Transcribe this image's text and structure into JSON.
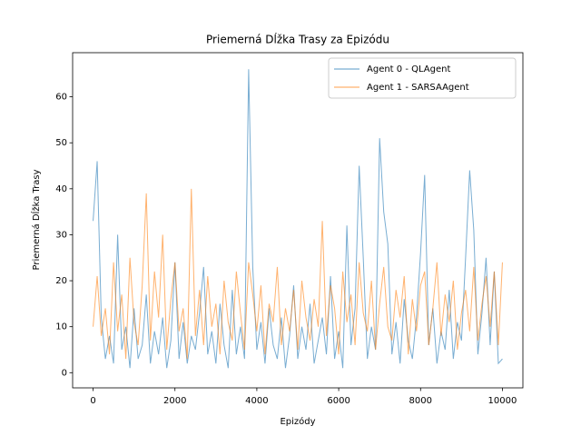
{
  "chart_data": {
    "type": "line",
    "title": "Priemerná Dĺžka Trasy za Epizódu",
    "x_label": "Epizódy",
    "y_label": "Priemerná Dĺžka Trasy",
    "x": [
      0,
      100,
      200,
      300,
      400,
      500,
      600,
      700,
      800,
      900,
      1000,
      1100,
      1200,
      1300,
      1400,
      1500,
      1600,
      1700,
      1800,
      1900,
      2000,
      2100,
      2200,
      2300,
      2400,
      2500,
      2600,
      2700,
      2800,
      2900,
      3000,
      3100,
      3200,
      3300,
      3400,
      3500,
      3600,
      3700,
      3800,
      3900,
      4000,
      4100,
      4200,
      4300,
      4400,
      4500,
      4600,
      4700,
      4800,
      4900,
      5000,
      5100,
      5200,
      5300,
      5400,
      5500,
      5600,
      5700,
      5800,
      5900,
      6000,
      6100,
      6200,
      6300,
      6400,
      6500,
      6600,
      6700,
      6800,
      6900,
      7000,
      7100,
      7200,
      7300,
      7400,
      7500,
      7600,
      7700,
      7800,
      7900,
      8000,
      8100,
      8200,
      8300,
      8400,
      8500,
      8600,
      8700,
      8800,
      8900,
      9000,
      9100,
      9200,
      9300,
      9400,
      9500,
      9600,
      9700,
      9800,
      9900,
      10000
    ],
    "series": [
      {
        "name": "Agent 0 - QLAgent",
        "color": "#1f77b4",
        "values": [
          33,
          46,
          12,
          3,
          8,
          2,
          30,
          5,
          10,
          1,
          14,
          3,
          6,
          17,
          2,
          9,
          4,
          12,
          1,
          7,
          24,
          3,
          11,
          2,
          8,
          5,
          13,
          23,
          4,
          9,
          2,
          15,
          6,
          1,
          18,
          4,
          10,
          3,
          66,
          23,
          5,
          11,
          2,
          14,
          6,
          3,
          12,
          1,
          8,
          19,
          3,
          10,
          5,
          15,
          2,
          7,
          12,
          4,
          21,
          3,
          9,
          1,
          32,
          6,
          14,
          45,
          25,
          3,
          10,
          5,
          51,
          35,
          28,
          4,
          11,
          2,
          16,
          7,
          3,
          12,
          26,
          43,
          6,
          14,
          2,
          9,
          5,
          18,
          3,
          11,
          7,
          25,
          44,
          31,
          4,
          13,
          25,
          6,
          22,
          2,
          3
        ]
      },
      {
        "name": "Agent 1 - SARSAAgent",
        "color": "#ff7f0e",
        "values": [
          10,
          21,
          8,
          14,
          4,
          24,
          9,
          17,
          3,
          25,
          11,
          6,
          19,
          39,
          7,
          22,
          12,
          30,
          5,
          16,
          24,
          9,
          14,
          3,
          40,
          8,
          18,
          6,
          21,
          10,
          15,
          4,
          20,
          11,
          7,
          22,
          13,
          5,
          24,
          17,
          9,
          19,
          4,
          15,
          11,
          23,
          6,
          14,
          9,
          18,
          5,
          20,
          12,
          7,
          16,
          10,
          33,
          8,
          19,
          14,
          4,
          22,
          11,
          17,
          6,
          24,
          13,
          9,
          20,
          5,
          15,
          23,
          10,
          7,
          18,
          12,
          21,
          4,
          16,
          9,
          19,
          22,
          6,
          14,
          24,
          8,
          17,
          11,
          20,
          5,
          13,
          18,
          9,
          23,
          7,
          15,
          21,
          10,
          22,
          6,
          24
        ]
      }
    ],
    "xlim": [
      -500,
      10500
    ],
    "ylim": [
      -3.3,
      69.6
    ],
    "xticks": [
      0,
      2000,
      4000,
      6000,
      8000,
      10000
    ],
    "yticks": [
      0,
      10,
      20,
      30,
      40,
      50,
      60
    ],
    "legend": "upper right",
    "grid": false
  }
}
